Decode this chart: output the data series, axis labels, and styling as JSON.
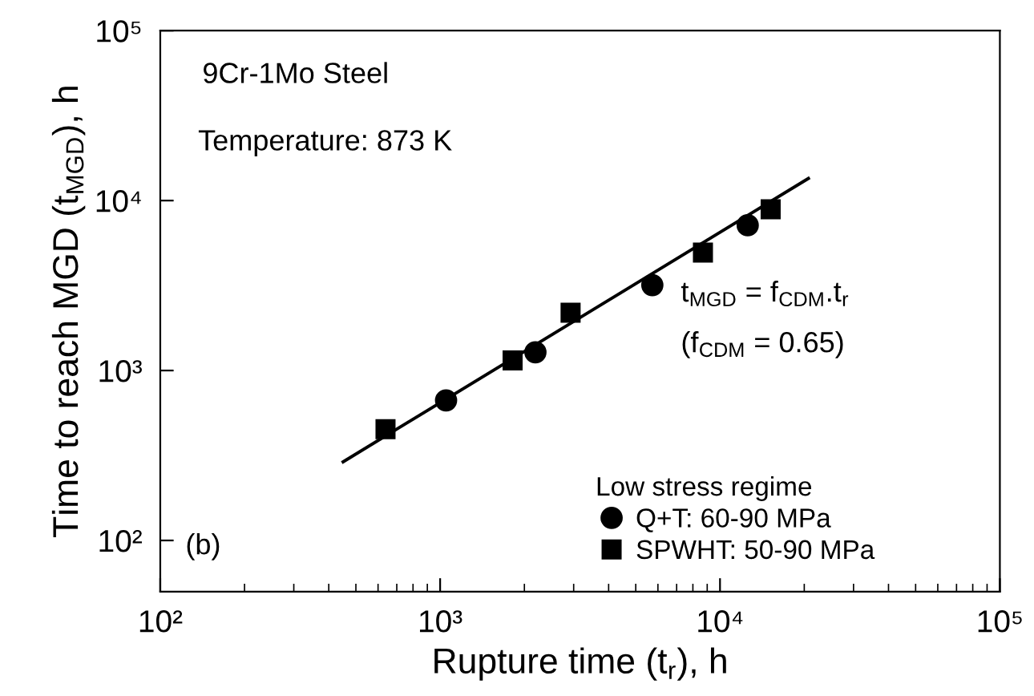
{
  "chart_data": {
    "type": "scatter",
    "xlabel": "Rupture time (t$_{r}$), h",
    "ylabel": "Time to reach MGD (t$_{MGD}$), h",
    "legend_title": "Low stress regime",
    "annotations": [
      "9Cr-1Mo Steel",
      "Temperature: 873 K",
      "(b)",
      "t$_{MGD}$ = f$_{CDM}$.t$_{r}$",
      "(f$_{CDM}$ = 0.65)"
    ],
    "log": "xy",
    "xlim": [
      100,
      100000
    ],
    "ylim": [
      50,
      100000
    ],
    "xticks": [
      {
        "value": 100,
        "label": "10²"
      },
      {
        "value": 1000,
        "label": "10³"
      },
      {
        "value": 10000,
        "label": "10⁴"
      },
      {
        "value": 100000,
        "label": "10⁵"
      }
    ],
    "yticks": [
      {
        "value": 100,
        "label": "10²"
      },
      {
        "value": 1000,
        "label": "10³"
      },
      {
        "value": 10000,
        "label": "10⁴"
      },
      {
        "value": 100000,
        "label": "10⁵"
      }
    ],
    "grid": false,
    "legend": "bottom right",
    "series": [
      {
        "type": "line",
        "color": "#000000",
        "marker": "none",
        "line_style": "solid",
        "x": [
          450,
          20700
        ],
        "values": [
          290,
          13500
        ]
      },
      {
        "name": "Q+T: 60-90 MPa",
        "color": "#000000",
        "marker": "circle",
        "x": [
          1050,
          2190,
          5730,
          12560
        ],
        "values": [
          667,
          1280,
          3180,
          7160
        ]
      },
      {
        "name": "SPWHT: 50-90 MPa",
        "color": "#000000",
        "marker": "square",
        "x": [
          638,
          1815,
          2925,
          8690,
          15170
        ],
        "values": [
          452,
          1145,
          2190,
          4940,
          8890
        ]
      }
    ]
  }
}
